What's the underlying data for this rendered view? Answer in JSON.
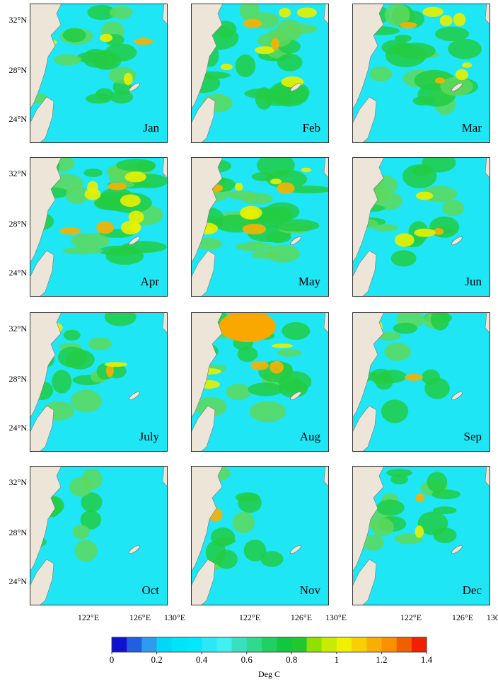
{
  "panels": [
    {
      "label": "Jan"
    },
    {
      "label": "Feb"
    },
    {
      "label": "Mar"
    },
    {
      "label": "Apr"
    },
    {
      "label": "May"
    },
    {
      "label": "Jun"
    },
    {
      "label": "July"
    },
    {
      "label": "Aug"
    },
    {
      "label": "Sep"
    },
    {
      "label": "Oct"
    },
    {
      "label": "Nov"
    },
    {
      "label": "Dec"
    }
  ],
  "lat_labels": [
    "32°N",
    "28°N",
    "24°N"
  ],
  "lon_labels": [
    "122°E",
    "126°E",
    "130°E"
  ],
  "colorbar": {
    "lim": [
      0,
      1.4
    ],
    "ticks": [
      0,
      0.2,
      0.4,
      0.6,
      0.8,
      1,
      1.2,
      1.4
    ],
    "label": "Deg C",
    "colors": [
      "#1010d0",
      "#1f5fe0",
      "#2f9bf0",
      "#00d8f8",
      "#00e4fa",
      "#00e8fa",
      "#2ae8f5",
      "#40f0f0",
      "#38e0c0",
      "#30d890",
      "#20d060",
      "#10c840",
      "#20c830",
      "#90e000",
      "#c8ec00",
      "#f0f000",
      "#f8d000",
      "#f8b000",
      "#f89000",
      "#f06000",
      "#f02000"
    ]
  }
}
